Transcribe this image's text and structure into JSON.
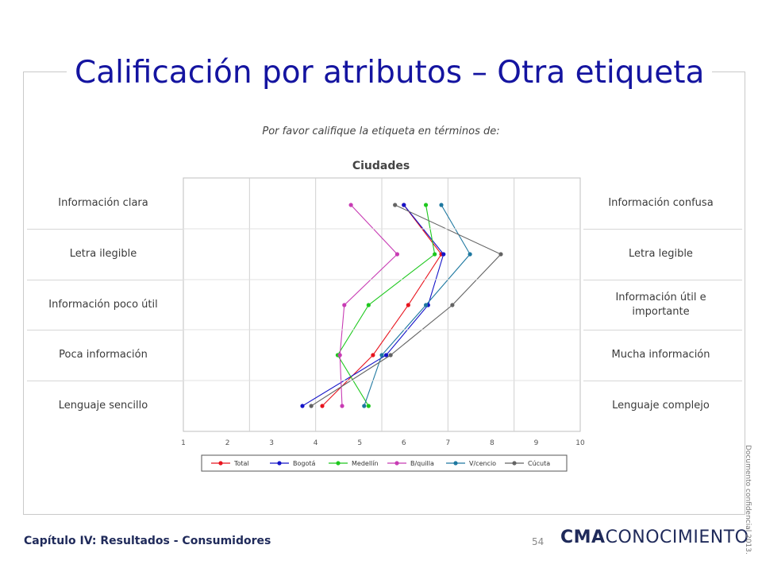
{
  "slide": {
    "title": "Calificación por atributos – Otra etiqueta",
    "footer_chapter": "Capítulo IV: Resultados - Consumidores",
    "page_number": "54",
    "logo_bold": "CMA",
    "logo_light": "CONOCIMIENTO",
    "confidential": "Documento confidencial 2013."
  },
  "chart_data": {
    "type": "line",
    "subtitle": "Por favor califique la etiqueta en términos de:",
    "title": "Ciudades",
    "xlim": [
      1,
      10
    ],
    "x_ticks": [
      "1",
      "2",
      "3",
      "4",
      "5",
      "6",
      "7",
      "8",
      "9",
      "10"
    ],
    "left_labels": [
      "Información clara",
      "Letra ilegible",
      "Información poco útil",
      "Poca información",
      "Lenguaje sencillo"
    ],
    "right_labels": [
      "Información confusa",
      "Letra legible",
      "Información útil e importante",
      "Mucha información",
      "Lenguaje complejo"
    ],
    "grid": "vertical",
    "legend_position": "bottom",
    "series": [
      {
        "name": "Total",
        "color": "#e8141e",
        "values": [
          6.0,
          6.85,
          6.1,
          5.3,
          4.15
        ]
      },
      {
        "name": "Bogotá",
        "color": "#1414c8",
        "values": [
          6.0,
          6.9,
          6.55,
          5.6,
          3.7
        ]
      },
      {
        "name": "Medellín",
        "color": "#1ec81e",
        "values": [
          6.5,
          6.7,
          5.2,
          4.5,
          5.2
        ]
      },
      {
        "name": "B/quilla",
        "color": "#c83cb4",
        "values": [
          4.8,
          5.85,
          4.65,
          4.55,
          4.6
        ]
      },
      {
        "name": "V/cencio",
        "color": "#1e78a0",
        "values": [
          6.85,
          7.5,
          6.5,
          5.5,
          5.1
        ]
      },
      {
        "name": "Cúcuta",
        "color": "#646464",
        "values": [
          5.8,
          8.2,
          7.1,
          5.7,
          3.9
        ]
      }
    ]
  }
}
